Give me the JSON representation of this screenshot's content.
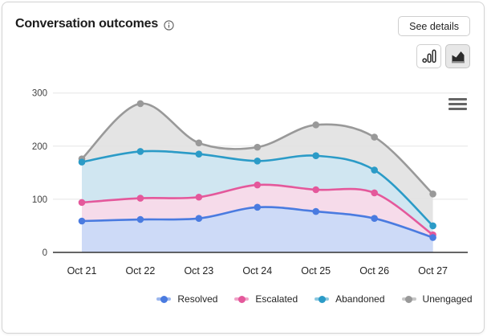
{
  "header": {
    "title": "Conversation outcomes",
    "see_details_label": "See details",
    "info_icon": "info-icon"
  },
  "toolbar": {
    "chart_type_options": [
      "column-chart",
      "area-chart"
    ],
    "selected_chart_type": "area-chart",
    "menu_icon": "hamburger-menu-icon"
  },
  "colors": {
    "resolved_line": "#4a7be0",
    "resolved_fill": "#c9d9f8",
    "escalated_line": "#e4589b",
    "escalated_fill": "#f9d9ea",
    "abandoned_line": "#2b9bc7",
    "abandoned_fill": "#cfe6f2",
    "unengaged_line": "#999999",
    "unengaged_fill": "#e2e2e2",
    "gridline": "#e5e5e5",
    "axis_line": "#333333",
    "border": "#d4d4d4",
    "selected_button_bg": "#e7e7e7"
  },
  "chart_data": {
    "type": "area",
    "smooth": true,
    "grid": true,
    "legend_position": "bottom",
    "title": "Conversation outcomes",
    "xlabel": "",
    "ylabel": "",
    "ylim": [
      0,
      300
    ],
    "yticks": [
      0,
      100,
      200,
      300
    ],
    "categories": [
      "Oct 21",
      "Oct 22",
      "Oct 23",
      "Oct 24",
      "Oct 25",
      "Oct 26",
      "Oct 27"
    ],
    "series": [
      {
        "name": "Resolved",
        "color": "#4a7be0",
        "fill": "#c9d9f8",
        "values": [
          59,
          62,
          64,
          85,
          77,
          64,
          28
        ]
      },
      {
        "name": "Escalated",
        "color": "#e4589b",
        "fill": "#f9d9ea",
        "values": [
          94,
          102,
          104,
          127,
          118,
          112,
          33
        ]
      },
      {
        "name": "Abandoned",
        "color": "#2b9bc7",
        "fill": "#cfe6f2",
        "values": [
          170,
          190,
          185,
          172,
          182,
          155,
          50
        ]
      },
      {
        "name": "Unengaged",
        "color": "#999999",
        "fill": "#e2e2e2",
        "values": [
          176,
          280,
          206,
          198,
          240,
          217,
          110
        ]
      }
    ]
  }
}
